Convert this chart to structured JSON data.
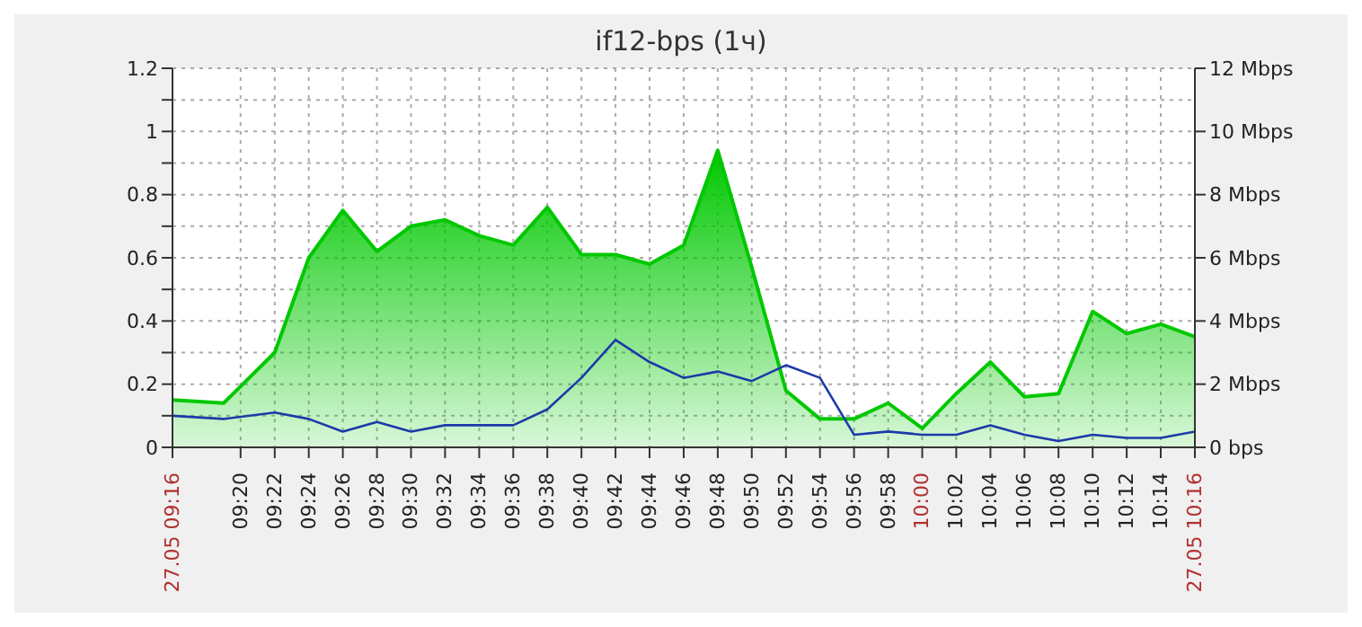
{
  "chart_data": {
    "type": "area",
    "title": "if12-bps (1ч)",
    "x": [
      9.2667,
      9.3167,
      9.3667,
      9.4,
      9.4333,
      9.4667,
      9.5,
      9.5333,
      9.5667,
      9.6,
      9.6333,
      9.6667,
      9.7,
      9.7333,
      9.7667,
      9.8,
      9.8333,
      9.8667,
      9.9,
      9.9333,
      9.9667,
      10,
      10.0333,
      10.0667,
      10.1,
      10.1333,
      10.1667,
      10.2,
      10.2333,
      10.2667
    ],
    "series": [
      {
        "color": "#00c800",
        "axis": "y2",
        "values": [
          1.5,
          1.4,
          3,
          6,
          7.5,
          6.2,
          7,
          7.2,
          6.7,
          6.4,
          7.6,
          6.1,
          6.1,
          5.8,
          6.4,
          9.4,
          5.7,
          1.8,
          0.9,
          0.9,
          1.4,
          0.6,
          1.7,
          2.7,
          1.6,
          1.7,
          4.3,
          3.6,
          3.9,
          3.5
        ]
      },
      {
        "type": "line",
        "color": "#1c3aa8",
        "axis": "y2",
        "values": [
          1,
          0.9,
          1.1,
          0.9,
          0.5,
          0.8,
          0.5,
          0.7,
          0.7,
          0.7,
          1.2,
          2.2,
          3.4,
          2.7,
          2.2,
          2.4,
          2.1,
          2.6,
          2.2,
          0.4,
          0.5,
          0.4,
          0.4,
          0.7,
          0.4,
          0.2,
          0.4,
          0.3,
          0.3,
          0.5
        ]
      }
    ],
    "xlim": [
      9.2667,
      10.2667
    ],
    "xticks": [
      {
        "value": 9.2667,
        "label": "27.05 09:16"
      },
      {
        "value": 9.3333,
        "label": "09:20"
      },
      {
        "value": 9.3667,
        "label": "09:22"
      },
      {
        "value": 9.4,
        "label": "09:24"
      },
      {
        "value": 9.4333,
        "label": "09:26"
      },
      {
        "value": 9.4667,
        "label": "09:28"
      },
      {
        "value": 9.5,
        "label": "09:30"
      },
      {
        "value": 9.5333,
        "label": "09:32"
      },
      {
        "value": 9.5667,
        "label": "09:34"
      },
      {
        "value": 9.6,
        "label": "09:36"
      },
      {
        "value": 9.6333,
        "label": "09:38"
      },
      {
        "value": 9.6667,
        "label": "09:40"
      },
      {
        "value": 9.7,
        "label": "09:42"
      },
      {
        "value": 9.7333,
        "label": "09:44"
      },
      {
        "value": 9.7667,
        "label": "09:46"
      },
      {
        "value": 9.8,
        "label": "09:48"
      },
      {
        "value": 9.8333,
        "label": "09:50"
      },
      {
        "value": 9.8667,
        "label": "09:52"
      },
      {
        "value": 9.9,
        "label": "09:54"
      },
      {
        "value": 9.9333,
        "label": "09:56"
      },
      {
        "value": 9.9667,
        "label": "09:58"
      },
      {
        "value": 10,
        "label": "10:00"
      },
      {
        "value": 10.0333,
        "label": "10:02"
      },
      {
        "value": 10.0667,
        "label": "10:04"
      },
      {
        "value": 10.1,
        "label": "10:06"
      },
      {
        "value": 10.1333,
        "label": "10:08"
      },
      {
        "value": 10.1667,
        "label": "10:10"
      },
      {
        "value": 10.2,
        "label": "10:12"
      },
      {
        "value": 10.2333,
        "label": "10:14"
      },
      {
        "value": 10.2667,
        "label": "27.05 10:16"
      }
    ],
    "ylim": [
      0,
      1.2
    ],
    "yticks": [
      0,
      {
        "value": 0.1,
        "label": null
      },
      0.2,
      {
        "value": 0.3,
        "label": null
      },
      0.4,
      {
        "value": 0.5,
        "label": null
      },
      0.6,
      {
        "value": 0.7,
        "label": null
      },
      0.8,
      {
        "value": 0.9,
        "label": null
      },
      1,
      {
        "value": 1.1,
        "label": null
      },
      1.2
    ],
    "y2lim": [
      0,
      12
    ],
    "y2ticks": [
      {
        "value": 0,
        "label": "0 bps"
      },
      {
        "value": 2,
        "label": "2 Mbps"
      },
      {
        "value": 4,
        "label": "4 Mbps"
      },
      {
        "value": 6,
        "label": "6 Mbps"
      },
      {
        "value": 8,
        "label": "8 Mbps"
      },
      {
        "value": 10,
        "label": "10 Mbps"
      },
      {
        "value": 12,
        "label": "12 Mbps"
      }
    ],
    "grid": true,
    "line_style": "solid",
    "marker": "none",
    "legend": false
  }
}
